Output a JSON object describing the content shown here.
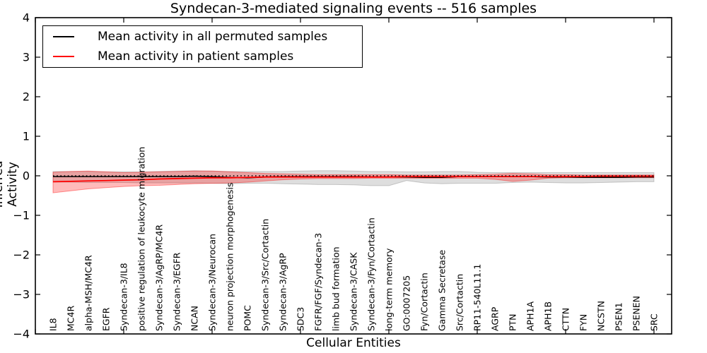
{
  "figure": {
    "title": "Syndecan-3-mediated signaling events -- 516 samples",
    "xlabel": "Cellular Entities",
    "ylabel": "Inferred Activity"
  },
  "legend": {
    "position": "upper left",
    "entries": [
      {
        "label": "Mean activity in all permuted samples",
        "color": "#000000"
      },
      {
        "label": "Mean activity in patient samples",
        "color": "#ff0000"
      }
    ]
  },
  "colors": {
    "axis": "#000000",
    "permuted_line": "#000000",
    "patient_line": "#ff0000",
    "permuted_band_fill": "rgba(0,0,0,0.13)",
    "permuted_band_edge": "rgba(0,0,0,0.18)",
    "patient_band_fill": "rgba(255,0,0,0.27)",
    "patient_band_edge": "rgba(255,0,0,0.40)",
    "zero_line": "#000000"
  },
  "chart_data": {
    "type": "line",
    "title": "Syndecan-3-mediated signaling events -- 516 samples",
    "xlabel": "Cellular Entities",
    "ylabel": "Inferred Activity",
    "ylim": [
      -4,
      4
    ],
    "xlim": [
      0,
      36
    ],
    "grid": false,
    "legend_position": "upper left",
    "yticks": [
      4,
      3,
      2,
      1,
      0,
      -1,
      -2,
      -3,
      -4
    ],
    "ytick_labels": [
      "4",
      "3",
      "2",
      "1",
      "0",
      "−1",
      "−2",
      "−3",
      "−4"
    ],
    "xtick_positions": [
      0,
      5,
      10,
      15,
      20,
      25,
      30,
      35
    ],
    "category_positions_start": 1,
    "categories": [
      "IL8",
      "MC4R",
      "alpha-MSH/MC4R",
      "EGFR",
      "Syndecan-3/IL8",
      "positive regulation of leukocyte migration",
      "Syndecan-3/AgRP/MC4R",
      "Syndecan-3/EGFR",
      "NCAN",
      "Syndecan-3/Neurocan",
      "neuron projection morphogenesis",
      "POMC",
      "Syndecan-3/Src/Cortactin",
      "Syndecan-3/AgRP",
      "SDC3",
      "FGFR/FGF/Syndecan-3",
      "limb bud formation",
      "Syndecan-3/CASK",
      "Syndecan-3/Fyn/Cortactin",
      "long-term memory",
      "GO:0007205",
      "Fyn/Cortactin",
      "Gamma Secretase",
      "Src/Cortactin",
      "RP11-540L11.1",
      "AGRP",
      "PTN",
      "APH1A",
      "APH1B",
      "CTTN",
      "FYN",
      "NCSTN",
      "PSEN1",
      "PSENEN",
      "SRC"
    ],
    "series": [
      {
        "name": "Mean activity in all permuted samples",
        "style": "solid",
        "values": [
          -0.02,
          -0.02,
          -0.02,
          -0.02,
          -0.02,
          -0.02,
          -0.02,
          -0.02,
          -0.01,
          -0.02,
          -0.04,
          -0.05,
          -0.03,
          -0.02,
          -0.02,
          -0.02,
          -0.02,
          -0.02,
          -0.03,
          -0.03,
          -0.03,
          -0.04,
          -0.04,
          -0.02,
          -0.02,
          -0.02,
          -0.02,
          -0.02,
          -0.03,
          -0.03,
          -0.04,
          -0.04,
          -0.04,
          -0.03,
          -0.03
        ]
      },
      {
        "name": "Mean activity in patient samples",
        "style": "solid",
        "values": [
          -0.15,
          -0.14,
          -0.13,
          -0.12,
          -0.11,
          -0.1,
          -0.08,
          -0.07,
          -0.06,
          -0.05,
          -0.05,
          -0.04,
          -0.03,
          -0.03,
          -0.03,
          -0.03,
          -0.03,
          -0.03,
          -0.03,
          -0.03,
          -0.02,
          -0.02,
          -0.02,
          -0.02,
          -0.02,
          -0.02,
          -0.02,
          -0.02,
          -0.02,
          -0.02,
          -0.02,
          -0.01,
          -0.01,
          -0.01,
          -0.01
        ]
      },
      {
        "name": "zero reference",
        "style": "dotted",
        "values": [
          0,
          0,
          0,
          0,
          0,
          0,
          0,
          0,
          0,
          0,
          0,
          0,
          0,
          0,
          0,
          0,
          0,
          0,
          0,
          0,
          0,
          0,
          0,
          0,
          0,
          0,
          0,
          0,
          0,
          0,
          0,
          0,
          0,
          0,
          0
        ]
      }
    ],
    "bands": [
      {
        "name": "permuted samples activity range",
        "top": [
          0.11,
          0.11,
          0.11,
          0.1,
          0.1,
          0.1,
          0.11,
          0.12,
          0.13,
          0.12,
          0.11,
          0.11,
          0.11,
          0.11,
          0.12,
          0.13,
          0.13,
          0.12,
          0.11,
          0.11,
          0.1,
          0.1,
          0.11,
          0.11,
          0.09,
          0.08,
          0.08,
          0.08,
          0.08,
          0.08,
          0.08,
          0.08,
          0.08,
          0.08,
          0.08
        ],
        "bottom": [
          -0.16,
          -0.16,
          -0.17,
          -0.17,
          -0.17,
          -0.18,
          -0.18,
          -0.18,
          -0.18,
          -0.19,
          -0.2,
          -0.19,
          -0.19,
          -0.2,
          -0.21,
          -0.22,
          -0.22,
          -0.23,
          -0.25,
          -0.25,
          -0.12,
          -0.18,
          -0.2,
          -0.19,
          -0.19,
          -0.19,
          -0.17,
          -0.16,
          -0.17,
          -0.18,
          -0.18,
          -0.17,
          -0.16,
          -0.15,
          -0.15
        ]
      },
      {
        "name": "patient samples activity range",
        "top": [
          0.09,
          0.11,
          0.12,
          0.1,
          0.08,
          0.09,
          0.1,
          0.11,
          0.12,
          0.12,
          0.1,
          0.08,
          0.06,
          0.05,
          0.04,
          0.03,
          0.03,
          0.03,
          0.03,
          0.03,
          0.02,
          0.02,
          0.02,
          0.02,
          0.03,
          0.04,
          0.06,
          0.05,
          0.03,
          0.03,
          0.02,
          0.02,
          0.02,
          0.02,
          0.02
        ],
        "bottom": [
          -0.43,
          -0.38,
          -0.33,
          -0.3,
          -0.27,
          -0.25,
          -0.24,
          -0.22,
          -0.2,
          -0.19,
          -0.18,
          -0.16,
          -0.13,
          -0.1,
          -0.08,
          -0.07,
          -0.07,
          -0.07,
          -0.06,
          -0.06,
          -0.06,
          -0.06,
          -0.06,
          -0.06,
          -0.06,
          -0.09,
          -0.14,
          -0.11,
          -0.06,
          -0.05,
          -0.05,
          -0.05,
          -0.05,
          -0.05,
          -0.05
        ]
      }
    ]
  }
}
